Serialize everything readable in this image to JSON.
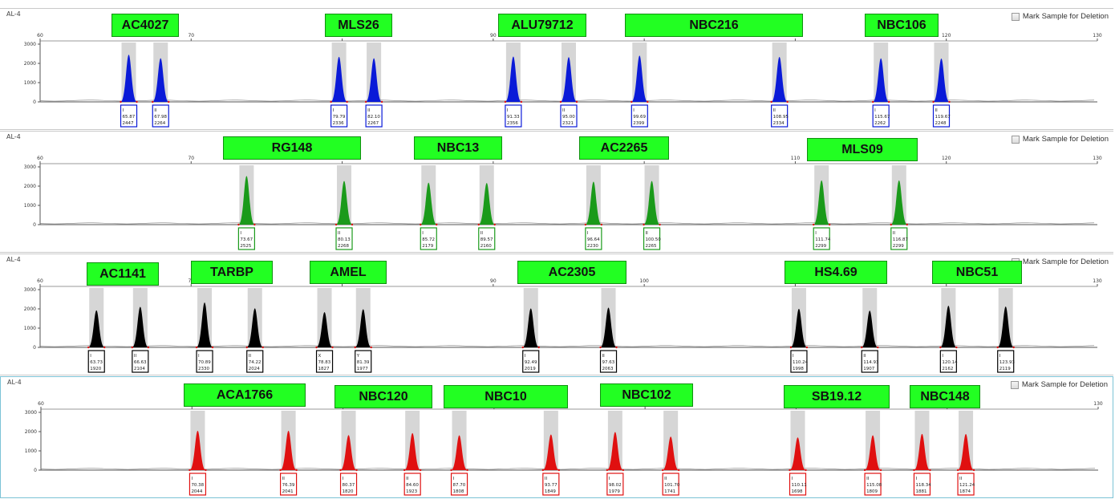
{
  "panel_label": "AL-4",
  "mark_label": "Mark Sample for Deletion",
  "x_ticks": [
    "60",
    "70",
    "80",
    "90",
    "100",
    "110",
    "120",
    "130"
  ],
  "y_ticks": [
    "3000",
    "2000",
    "1000",
    "0"
  ],
  "panels": [
    {
      "color": "#0a1ad8",
      "markers": [
        "AC4027",
        "MLS26",
        "ALU79712",
        "NBC216",
        "NBC106"
      ],
      "peaks": [
        {
          "allele": "I",
          "size": 65.87,
          "height": 2447
        },
        {
          "allele": "II",
          "size": 67.98,
          "height": 2264
        },
        {
          "allele": "I",
          "size": 79.79,
          "height": 2336
        },
        {
          "allele": "II",
          "size": 82.1,
          "height": 2267
        },
        {
          "allele": "I",
          "size": 91.33,
          "height": 2356
        },
        {
          "allele": "II",
          "size": 95.0,
          "height": 2321
        },
        {
          "allele": "I",
          "size": 99.69,
          "height": 2399
        },
        {
          "allele": "II",
          "size": 108.95,
          "height": 2334
        },
        {
          "allele": "I",
          "size": 115.67,
          "height": 2262
        },
        {
          "allele": "II",
          "size": 119.67,
          "height": 2248
        }
      ]
    },
    {
      "color": "#1a9a1a",
      "markers": [
        "RG148",
        "NBC13",
        "AC2265",
        "MLS09"
      ],
      "peaks": [
        {
          "allele": "I",
          "size": 73.67,
          "height": 2525
        },
        {
          "allele": "II",
          "size": 80.13,
          "height": 2268
        },
        {
          "allele": "I",
          "size": 85.72,
          "height": 2179
        },
        {
          "allele": "II",
          "size": 89.57,
          "height": 2160
        },
        {
          "allele": "I",
          "size": 96.64,
          "height": 2230
        },
        {
          "allele": "II",
          "size": 100.5,
          "height": 2265
        },
        {
          "allele": "I",
          "size": 111.74,
          "height": 2299
        },
        {
          "allele": "II",
          "size": 116.87,
          "height": 2299
        }
      ]
    },
    {
      "color": "#000000",
      "markers": [
        "AC1141",
        "TARBP",
        "AMEL",
        "AC2305",
        "HS4.69",
        "NBC51"
      ],
      "peaks": [
        {
          "allele": "I",
          "size": 63.73,
          "height": 1920
        },
        {
          "allele": "II",
          "size": 66.63,
          "height": 2104
        },
        {
          "allele": "I",
          "size": 70.89,
          "height": 2330
        },
        {
          "allele": "II",
          "size": 74.22,
          "height": 2024
        },
        {
          "allele": "X",
          "size": 78.83,
          "height": 1827
        },
        {
          "allele": "Y",
          "size": 81.39,
          "height": 1977
        },
        {
          "allele": "I",
          "size": 92.49,
          "height": 2019
        },
        {
          "allele": "II",
          "size": 97.63,
          "height": 2063
        },
        {
          "allele": "I",
          "size": 110.24,
          "height": 1998
        },
        {
          "allele": "II",
          "size": 114.93,
          "height": 1907
        },
        {
          "allele": "I",
          "size": 120.14,
          "height": 2162
        },
        {
          "allele": "I",
          "size": 123.93,
          "height": 2119
        }
      ]
    },
    {
      "color": "#e01010",
      "markers": [
        "ACA1766",
        "NBC120",
        "NBC10",
        "NBC102",
        "SB19.12",
        "NBC148"
      ],
      "peaks": [
        {
          "allele": "I",
          "size": 70.38,
          "height": 2044
        },
        {
          "allele": "II",
          "size": 76.39,
          "height": 2041
        },
        {
          "allele": "I",
          "size": 80.37,
          "height": 1820
        },
        {
          "allele": "II",
          "size": 84.6,
          "height": 1923
        },
        {
          "allele": "I",
          "size": 87.7,
          "height": 1808
        },
        {
          "allele": "II",
          "size": 93.77,
          "height": 1849
        },
        {
          "allele": "I",
          "size": 98.02,
          "height": 1979
        },
        {
          "allele": "II",
          "size": 101.7,
          "height": 1741
        },
        {
          "allele": "I",
          "size": 110.11,
          "height": 1698
        },
        {
          "allele": "II",
          "size": 115.08,
          "height": 1809
        },
        {
          "allele": "I",
          "size": 118.34,
          "height": 1881
        },
        {
          "allele": "II",
          "size": 121.24,
          "height": 1874
        }
      ]
    }
  ]
}
